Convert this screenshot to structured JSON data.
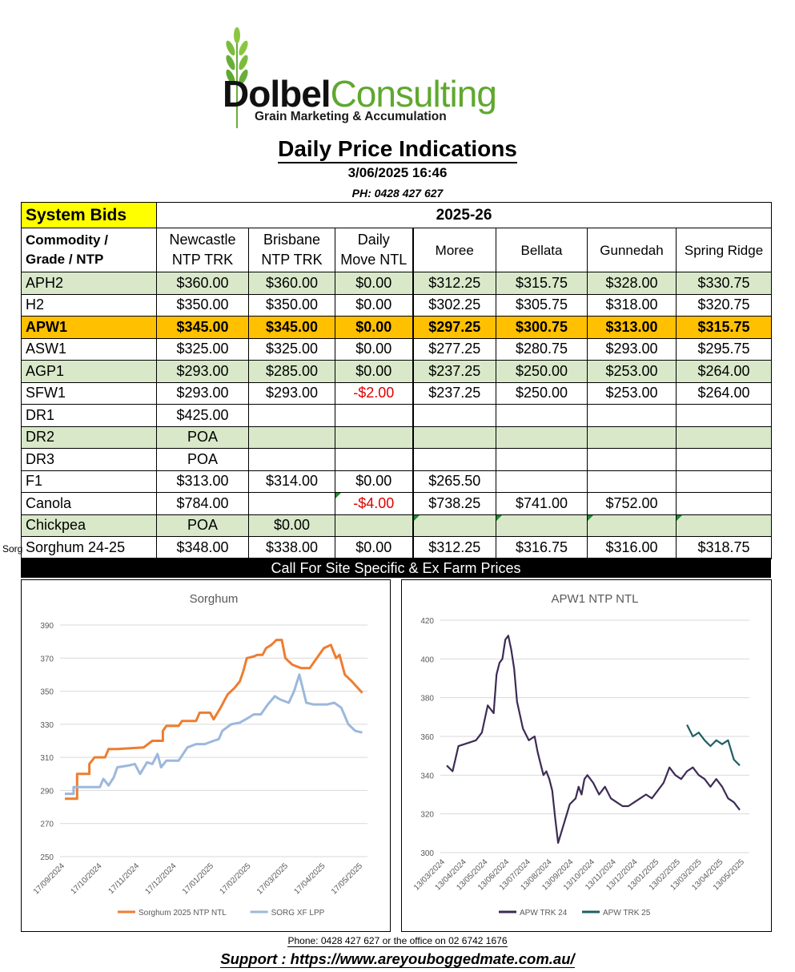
{
  "logo": {
    "name_bold": "Dolbel",
    "name_light": "Consulting",
    "reg": "®",
    "tagline": "Grain Marketing & Accumulation",
    "brand_green": "#5fa82f"
  },
  "header": {
    "title": "Daily Price Indications",
    "datetime": "3/06/2025 16:46",
    "phone": "PH: 0428 427 627"
  },
  "ghost_text": "Sorg",
  "table": {
    "system_bids": "System Bids",
    "season": "2025-26",
    "headers": {
      "commodity_line1": "Commodity /",
      "commodity_line2": "Grade / NTP",
      "newcastle_line1": "Newcastle",
      "newcastle_line2": "NTP TRK",
      "brisbane_line1": "Brisbane",
      "brisbane_line2": "NTP TRK",
      "daily_line1": "Daily",
      "daily_line2": "Move NTL",
      "moree": "Moree",
      "bellata": "Bellata",
      "gunnedah": "Gunnedah",
      "spring_ridge": "Spring Ridge"
    },
    "rows": [
      {
        "c": [
          "APH2",
          "$360.00",
          "$360.00",
          "$0.00",
          "$312.25",
          "$315.75",
          "$328.00",
          "$330.75"
        ]
      },
      {
        "c": [
          "H2",
          "$350.00",
          "$350.00",
          "$0.00",
          "$302.25",
          "$305.75",
          "$318.00",
          "$320.75"
        ]
      },
      {
        "c": [
          "APW1",
          "$345.00",
          "$345.00",
          "$0.00",
          "$297.25",
          "$300.75",
          "$313.00",
          "$315.75"
        ]
      },
      {
        "c": [
          "ASW1",
          "$325.00",
          "$325.00",
          "$0.00",
          "$277.25",
          "$280.75",
          "$293.00",
          "$295.75"
        ]
      },
      {
        "c": [
          "AGP1",
          "$293.00",
          "$285.00",
          "$0.00",
          "$237.25",
          "$250.00",
          "$253.00",
          "$264.00"
        ]
      },
      {
        "c": [
          "SFW1",
          "$293.00",
          "$293.00",
          "-$2.00",
          "$237.25",
          "$250.00",
          "$253.00",
          "$264.00"
        ]
      },
      {
        "c": [
          "DR1",
          "$425.00",
          "",
          "",
          "",
          "",
          "",
          ""
        ]
      },
      {
        "c": [
          "DR2",
          "POA",
          "",
          "",
          "",
          "",
          "",
          ""
        ]
      },
      {
        "c": [
          "DR3",
          "POA",
          "",
          "",
          "",
          "",
          "",
          ""
        ]
      },
      {
        "c": [
          "F1",
          "$313.00",
          "$314.00",
          "$0.00",
          "$265.50",
          "",
          "",
          ""
        ]
      },
      {
        "c": [
          "Canola",
          "$784.00",
          "",
          "-$4.00",
          "$738.25",
          "$741.00",
          "$752.00",
          ""
        ]
      },
      {
        "c": [
          "Chickpea",
          "POA",
          "$0.00",
          "",
          "",
          "",
          "",
          ""
        ]
      },
      {
        "c": [
          "Sorghum 24-25",
          "$348.00",
          "$338.00",
          "$0.00",
          "$312.25",
          "$316.75",
          "$316.00",
          "$318.75"
        ]
      }
    ],
    "highlight_color": "#ffc000",
    "band_color": "#d9e8c9",
    "negative_color": "#e00000"
  },
  "call_bar": "Call For Site Specific & Ex Farm Prices",
  "chart_data": [
    {
      "type": "line",
      "title": "Sorghum",
      "ylim": [
        250,
        390
      ],
      "y_ticks": [
        "390",
        "370",
        "350",
        "330",
        "310",
        "290",
        "270",
        "250"
      ],
      "x_ticks": [
        "17/09/2024",
        "17/10/2024",
        "17/11/2024",
        "17/12/2024",
        "17/01/2025",
        "17/02/2025",
        "17/03/2025",
        "17/04/2025",
        "17/05/2025"
      ],
      "grid": true,
      "legend": "bottom",
      "series": [
        {
          "name": "Sorghum  2025 NTP NTL",
          "color": "#ed7d31",
          "points": [
            [
              0,
              285
            ],
            [
              0.07,
              285
            ],
            [
              0.07,
              300
            ],
            [
              0.14,
              300
            ],
            [
              0.14,
              306
            ],
            [
              0.17,
              310
            ],
            [
              0.23,
              310
            ],
            [
              0.25,
              315
            ],
            [
              0.3,
              315
            ],
            [
              0.45,
              316
            ],
            [
              0.5,
              320
            ],
            [
              0.56,
              320
            ],
            [
              0.56,
              326
            ],
            [
              0.58,
              329
            ],
            [
              0.65,
              329
            ],
            [
              0.67,
              332
            ],
            [
              0.75,
              332
            ],
            [
              0.77,
              337
            ],
            [
              0.83,
              337
            ],
            [
              0.85,
              333
            ],
            [
              0.89,
              340
            ],
            [
              0.93,
              348
            ],
            [
              0.97,
              352
            ],
            [
              1.0,
              356
            ],
            [
              1.02,
              362
            ],
            [
              1.04,
              370
            ],
            [
              1.08,
              371
            ],
            [
              1.1,
              372
            ],
            [
              1.13,
              372
            ],
            [
              1.15,
              376
            ],
            [
              1.18,
              378
            ],
            [
              1.21,
              381
            ],
            [
              1.24,
              381
            ],
            [
              1.26,
              370
            ],
            [
              1.3,
              366
            ],
            [
              1.35,
              364
            ],
            [
              1.4,
              364
            ],
            [
              1.44,
              370
            ],
            [
              1.48,
              376
            ],
            [
              1.52,
              378
            ],
            [
              1.55,
              370
            ],
            [
              1.57,
              372
            ],
            [
              1.6,
              360
            ],
            [
              1.64,
              356
            ],
            [
              1.7,
              349
            ]
          ]
        },
        {
          "name": "SORG XF LPP",
          "color": "#9cb8dc",
          "points": [
            [
              0,
              288
            ],
            [
              0.05,
              288
            ],
            [
              0.05,
              292
            ],
            [
              0.15,
              292
            ],
            [
              0.2,
              292
            ],
            [
              0.22,
              297
            ],
            [
              0.25,
              293
            ],
            [
              0.28,
              298
            ],
            [
              0.3,
              304
            ],
            [
              0.36,
              305
            ],
            [
              0.4,
              306
            ],
            [
              0.43,
              300
            ],
            [
              0.47,
              307
            ],
            [
              0.5,
              306
            ],
            [
              0.53,
              312
            ],
            [
              0.55,
              304
            ],
            [
              0.58,
              308
            ],
            [
              0.62,
              308
            ],
            [
              0.65,
              308
            ],
            [
              0.7,
              316
            ],
            [
              0.75,
              318
            ],
            [
              0.8,
              318
            ],
            [
              0.85,
              320
            ],
            [
              0.88,
              321
            ],
            [
              0.9,
              326
            ],
            [
              0.95,
              330
            ],
            [
              1.0,
              331
            ],
            [
              1.05,
              334
            ],
            [
              1.08,
              336
            ],
            [
              1.12,
              336
            ],
            [
              1.16,
              342
            ],
            [
              1.2,
              347
            ],
            [
              1.23,
              345
            ],
            [
              1.28,
              343
            ],
            [
              1.31,
              350
            ],
            [
              1.34,
              360
            ],
            [
              1.38,
              343
            ],
            [
              1.42,
              342
            ],
            [
              1.46,
              342
            ],
            [
              1.5,
              342
            ],
            [
              1.54,
              343
            ],
            [
              1.58,
              340
            ],
            [
              1.62,
              330
            ],
            [
              1.66,
              326
            ],
            [
              1.7,
              325
            ]
          ]
        }
      ]
    },
    {
      "type": "line",
      "title": "APW1 NTP NTL",
      "ylim": [
        300,
        420
      ],
      "y_ticks": [
        "420",
        "400",
        "380",
        "360",
        "340",
        "320",
        "300"
      ],
      "x_ticks": [
        "13/03/2024",
        "13/04/2024",
        "13/05/2024",
        "13/06/2024",
        "13/07/2024",
        "13/08/2024",
        "13/09/2024",
        "13/10/2024",
        "13/11/2024",
        "13/12/2024",
        "13/01/2025",
        "13/02/2025",
        "13/03/2025",
        "13/04/2025",
        "13/05/2025"
      ],
      "grid": true,
      "legend": "bottom",
      "series": [
        {
          "name": "APW TRK 24",
          "color": "#3d2b56"
        },
        {
          "name": "APW TRK 25",
          "color": "#1f5f63"
        }
      ]
    }
  ],
  "footer": {
    "phone_line": "Phone: 0428 427 627 or the office on 02 6742 1676",
    "support_line": "Support : https://www.areyouboggedmate.com.au/"
  }
}
